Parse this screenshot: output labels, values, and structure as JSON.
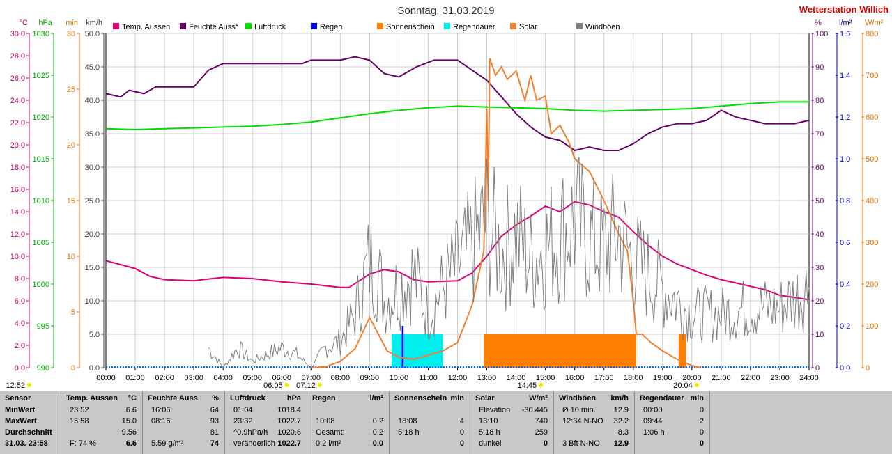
{
  "chart_data": {
    "type": "line",
    "title": "Sonntag, 31.03.2019",
    "brand": "Wetterstation Willich",
    "x_labels": [
      "00:00",
      "01:00",
      "02:00",
      "03:00",
      "04:00",
      "05:00",
      "06:00",
      "07:00",
      "08:00",
      "09:00",
      "10:00",
      "11:00",
      "12:00",
      "13:00",
      "14:00",
      "15:00",
      "16:00",
      "17:00",
      "18:00",
      "19:00",
      "20:00",
      "21:00",
      "22:00",
      "23:00",
      "24:00"
    ],
    "xlim_hours": [
      0,
      24
    ],
    "left_axes": [
      {
        "unit": "°C",
        "color": "#cc0066",
        "min": 0,
        "max": 30,
        "ticks": [
          "0.0",
          "2.0",
          "4.0",
          "6.0",
          "8.0",
          "10.0",
          "12.0",
          "14.0",
          "16.0",
          "18.0",
          "20.0",
          "22.0",
          "24.0",
          "26.0",
          "28.0",
          "30.0"
        ]
      },
      {
        "unit": "hPa",
        "color": "#00aa00",
        "min": 990,
        "max": 1030,
        "ticks": [
          "990",
          "995",
          "1000",
          "1005",
          "1010",
          "1015",
          "1020",
          "1025",
          "1030"
        ]
      },
      {
        "unit": "min",
        "color": "#e07000",
        "min": 0,
        "max": 30,
        "ticks": [
          "0",
          "5",
          "10",
          "15",
          "20",
          "25",
          "30"
        ]
      },
      {
        "unit": "km/h",
        "color": "#444444",
        "min": 0,
        "max": 50,
        "ticks": [
          "0.0",
          "5.0",
          "10.0",
          "15.0",
          "20.0",
          "25.0",
          "30.0",
          "35.0",
          "40.0",
          "45.0",
          "50.0"
        ]
      }
    ],
    "right_axes": [
      {
        "unit": "%",
        "color": "#660066",
        "min": 0,
        "max": 100,
        "ticks": [
          "0",
          "10",
          "20",
          "30",
          "40",
          "50",
          "60",
          "70",
          "80",
          "90",
          "100"
        ]
      },
      {
        "unit": "l/m²",
        "color": "#0000aa",
        "min": 0,
        "max": 1.6,
        "ticks": [
          "0.0",
          "0.2",
          "0.4",
          "0.6",
          "0.8",
          "1.0",
          "1.2",
          "1.4",
          "1.6"
        ]
      },
      {
        "unit": "W/m²",
        "color": "#e07000",
        "min": 0,
        "max": 800,
        "ticks": [
          "0",
          "100",
          "200",
          "300",
          "400",
          "500",
          "600",
          "700",
          "800"
        ]
      }
    ],
    "legend": [
      {
        "name": "Temp. Aussen",
        "color": "#dd0077"
      },
      {
        "name": "Feuchte Auss*",
        "color": "#660066"
      },
      {
        "name": "Luftdruck",
        "color": "#00dd00"
      },
      {
        "name": "Regen",
        "color": "#0000ee"
      },
      {
        "name": "Sonnenschein",
        "color": "#ff8000"
      },
      {
        "name": "Regendauer",
        "color": "#00eeee"
      },
      {
        "name": "Solar",
        "color": "#f08030"
      },
      {
        "name": "Windböen",
        "color": "#808080"
      }
    ],
    "series": [
      {
        "name": "Temp. Aussen",
        "color": "#dd0077",
        "axis": "°C",
        "points": [
          [
            0,
            9.6
          ],
          [
            1,
            8.9
          ],
          [
            1.5,
            8.2
          ],
          [
            2,
            7.9
          ],
          [
            3,
            7.8
          ],
          [
            3.3,
            7.9
          ],
          [
            4,
            8.1
          ],
          [
            5,
            8.0
          ],
          [
            6,
            7.7
          ],
          [
            7,
            7.5
          ],
          [
            8,
            7.2
          ],
          [
            8.3,
            7.2
          ],
          [
            9,
            8.4
          ],
          [
            9.5,
            8.8
          ],
          [
            10,
            8.6
          ],
          [
            10.5,
            7.9
          ],
          [
            11,
            7.7
          ],
          [
            12,
            7.8
          ],
          [
            12.5,
            8.5
          ],
          [
            13,
            10.0
          ],
          [
            13.5,
            11.8
          ],
          [
            14,
            12.8
          ],
          [
            14.5,
            13.6
          ],
          [
            15,
            14.5
          ],
          [
            15.5,
            14.0
          ],
          [
            16,
            14.9
          ],
          [
            16.5,
            14.6
          ],
          [
            17,
            14.0
          ],
          [
            17.5,
            13.5
          ],
          [
            18,
            12.2
          ],
          [
            18.5,
            11.0
          ],
          [
            19,
            10.0
          ],
          [
            19.5,
            9.3
          ],
          [
            20,
            8.8
          ],
          [
            20.5,
            8.3
          ],
          [
            21,
            7.9
          ],
          [
            21.5,
            7.6
          ],
          [
            22,
            7.3
          ],
          [
            22.5,
            7.0
          ],
          [
            23,
            6.5
          ],
          [
            23.5,
            6.3
          ],
          [
            24,
            6.1
          ]
        ]
      },
      {
        "name": "Feuchte Auss*",
        "color": "#660066",
        "axis": "%",
        "points": [
          [
            0,
            82
          ],
          [
            0.5,
            81
          ],
          [
            0.8,
            83
          ],
          [
            1.3,
            82
          ],
          [
            1.7,
            84
          ],
          [
            2,
            84
          ],
          [
            3,
            84
          ],
          [
            3.5,
            89
          ],
          [
            4,
            91
          ],
          [
            5,
            91
          ],
          [
            6,
            91
          ],
          [
            6.7,
            91
          ],
          [
            7,
            92
          ],
          [
            8,
            92
          ],
          [
            8.5,
            93
          ],
          [
            9,
            92
          ],
          [
            9.5,
            88
          ],
          [
            10,
            87
          ],
          [
            10.6,
            90
          ],
          [
            11.2,
            92
          ],
          [
            12,
            92
          ],
          [
            12.5,
            89
          ],
          [
            13,
            86
          ],
          [
            13.5,
            81
          ],
          [
            14,
            76
          ],
          [
            14.5,
            72
          ],
          [
            15,
            69
          ],
          [
            15.5,
            68
          ],
          [
            16,
            65
          ],
          [
            16.5,
            66
          ],
          [
            17,
            65
          ],
          [
            17.5,
            65
          ],
          [
            18,
            67
          ],
          [
            18.5,
            70
          ],
          [
            19,
            72
          ],
          [
            19.5,
            73
          ],
          [
            20,
            73
          ],
          [
            20.5,
            74
          ],
          [
            21,
            77
          ],
          [
            21.5,
            75
          ],
          [
            22,
            74
          ],
          [
            22.5,
            73
          ],
          [
            23,
            73
          ],
          [
            23.5,
            73
          ],
          [
            24,
            74
          ]
        ]
      },
      {
        "name": "Luftdruck",
        "color": "#00dd00",
        "axis": "hPa",
        "points": [
          [
            0,
            1018.6
          ],
          [
            1,
            1018.5
          ],
          [
            2,
            1018.6
          ],
          [
            3,
            1018.7
          ],
          [
            4,
            1018.8
          ],
          [
            5,
            1018.9
          ],
          [
            6,
            1019.1
          ],
          [
            7,
            1019.4
          ],
          [
            8,
            1019.9
          ],
          [
            9,
            1020.4
          ],
          [
            10,
            1020.8
          ],
          [
            11,
            1021.1
          ],
          [
            12,
            1021.3
          ],
          [
            13,
            1021.2
          ],
          [
            14,
            1021.1
          ],
          [
            15,
            1021.0
          ],
          [
            16,
            1020.8
          ],
          [
            17,
            1020.7
          ],
          [
            18,
            1020.8
          ],
          [
            19,
            1020.9
          ],
          [
            20,
            1021.0
          ],
          [
            21,
            1021.3
          ],
          [
            22,
            1021.6
          ],
          [
            23,
            1021.8
          ],
          [
            24,
            1021.8
          ]
        ]
      },
      {
        "name": "Solar",
        "color": "#f08030",
        "axis": "W/m²",
        "points": [
          [
            7,
            0
          ],
          [
            7.5,
            2
          ],
          [
            8,
            15
          ],
          [
            8.5,
            45
          ],
          [
            9,
            120
          ],
          [
            9.3,
            80
          ],
          [
            9.6,
            40
          ],
          [
            10,
            25
          ],
          [
            10.5,
            20
          ],
          [
            11,
            30
          ],
          [
            11.5,
            40
          ],
          [
            12,
            60
          ],
          [
            12.5,
            150
          ],
          [
            12.9,
            280
          ],
          [
            13,
            620
          ],
          [
            13.05,
            400
          ],
          [
            13.1,
            740
          ],
          [
            13.3,
            700
          ],
          [
            13.5,
            720
          ],
          [
            13.7,
            690
          ],
          [
            14,
            710
          ],
          [
            14.3,
            640
          ],
          [
            14.5,
            700
          ],
          [
            14.7,
            640
          ],
          [
            15,
            650
          ],
          [
            15.2,
            560
          ],
          [
            15.5,
            580
          ],
          [
            15.8,
            540
          ],
          [
            16,
            500
          ],
          [
            16.5,
            470
          ],
          [
            17,
            400
          ],
          [
            17.5,
            320
          ],
          [
            17.8,
            280
          ],
          [
            18,
            160
          ],
          [
            18.1,
            80
          ],
          [
            18.3,
            80
          ],
          [
            18.6,
            60
          ],
          [
            19,
            40
          ],
          [
            19.5,
            20
          ],
          [
            20,
            5
          ],
          [
            20.3,
            0
          ]
        ]
      },
      {
        "name": "Windböen",
        "color": "#808080",
        "axis": "km/h",
        "style": "jagged",
        "points": [
          [
            3.5,
            3
          ],
          [
            4,
            0
          ],
          [
            4.5,
            3
          ],
          [
            5,
            1
          ],
          [
            6,
            3
          ],
          [
            6.5,
            2
          ],
          [
            7,
            0
          ],
          [
            7.5,
            3
          ],
          [
            8,
            4
          ],
          [
            8.5,
            8
          ],
          [
            9,
            16
          ],
          [
            9.3,
            14
          ],
          [
            9.5,
            10
          ],
          [
            10,
            12
          ],
          [
            10.5,
            14
          ],
          [
            11,
            8
          ],
          [
            11.5,
            12
          ],
          [
            12,
            15
          ],
          [
            12.5,
            18
          ],
          [
            13,
            22
          ],
          [
            13.5,
            17
          ],
          [
            14,
            20
          ],
          [
            14.5,
            16
          ],
          [
            15,
            18
          ],
          [
            15.5,
            20
          ],
          [
            16,
            22
          ],
          [
            16.5,
            19
          ],
          [
            17,
            18
          ],
          [
            17.5,
            20
          ],
          [
            18,
            16
          ],
          [
            18.5,
            14
          ],
          [
            19,
            12
          ],
          [
            19.5,
            10
          ],
          [
            20,
            8
          ],
          [
            21,
            8
          ],
          [
            22,
            9
          ],
          [
            23,
            9
          ],
          [
            24,
            12
          ]
        ]
      }
    ],
    "bars": [
      {
        "name": "Sonnenschein",
        "color": "#ff8000",
        "axis": "min",
        "intervals": [
          [
            12.9,
            18.1,
            3
          ],
          [
            19.55,
            19.8,
            3
          ]
        ]
      },
      {
        "name": "Regendauer",
        "color": "#00eeee",
        "axis": "min",
        "intervals": [
          [
            9.75,
            11.5,
            3
          ]
        ]
      },
      {
        "name": "Regen",
        "color": "#0000ee",
        "axis": "l/m²",
        "intervals": [
          [
            10.1,
            10.16,
            0.2
          ]
        ]
      }
    ],
    "markers": [
      {
        "label": "12:52",
        "hour": -1
      },
      {
        "label": "06:05",
        "hour": 6.08
      },
      {
        "label": "07:12",
        "hour": 7.2
      },
      {
        "label": "14:45",
        "hour": 14.75
      },
      {
        "label": "20:04",
        "hour": 20.07
      }
    ]
  },
  "table": {
    "columns": [
      {
        "header": "Sensor",
        "unit": "",
        "rows": [
          [
            "MinWert",
            ""
          ],
          [
            "MaxWert",
            ""
          ],
          [
            "Durchschnitt",
            ""
          ],
          [
            "31.03. 23:58",
            ""
          ]
        ]
      },
      {
        "header": "Temp. Aussen",
        "unit": "°C",
        "rows": [
          [
            "23:52",
            "6.6"
          ],
          [
            "15:58",
            "15.0"
          ],
          [
            "",
            "9.56"
          ],
          [
            "F: 74 %",
            "6.6"
          ]
        ]
      },
      {
        "header": "Feuchte Auss",
        "unit": "%",
        "rows": [
          [
            "16:06",
            "64"
          ],
          [
            "08:16",
            "93"
          ],
          [
            "",
            "81"
          ],
          [
            "5.59 g/m³",
            "74"
          ]
        ]
      },
      {
        "header": "Luftdruck",
        "unit": "hPa",
        "rows": [
          [
            "01:04",
            "1018.4"
          ],
          [
            "23:32",
            "1022.7"
          ],
          [
            "^0.9hPa/h",
            "1020.6"
          ],
          [
            "veränderlich",
            "1022.7"
          ]
        ]
      },
      {
        "header": "Regen",
        "unit": "l/m²",
        "rows": [
          [
            "",
            ""
          ],
          [
            "10:08",
            "0.2"
          ],
          [
            "Gesamt:",
            "0.2"
          ],
          [
            "0.2 l/m²",
            "0.0"
          ]
        ]
      },
      {
        "header": "Sonnenschein",
        "unit": "min",
        "rows": [
          [
            "",
            ""
          ],
          [
            "18:08",
            "4"
          ],
          [
            "5:18 h",
            "0"
          ],
          [
            "",
            "0"
          ]
        ]
      },
      {
        "header": "Solar",
        "unit": "W/m²",
        "rows": [
          [
            "Elevation",
            "-30.445"
          ],
          [
            "13:10",
            "740"
          ],
          [
            "5:18 h",
            "259"
          ],
          [
            "dunkel",
            "0"
          ]
        ]
      },
      {
        "header": "Windböen",
        "unit": "km/h",
        "rows": [
          [
            "Ø 10 min.",
            "12.9"
          ],
          [
            "12:34  N-NO",
            "32.2"
          ],
          [
            "",
            "8.3"
          ],
          [
            "3 Bft N-NO",
            "12.9"
          ]
        ]
      },
      {
        "header": "Regendauer",
        "unit": "min",
        "rows": [
          [
            "00:00",
            "0"
          ],
          [
            "09:44",
            "2"
          ],
          [
            "1:06 h",
            "0"
          ],
          [
            "",
            "0"
          ]
        ]
      }
    ]
  }
}
